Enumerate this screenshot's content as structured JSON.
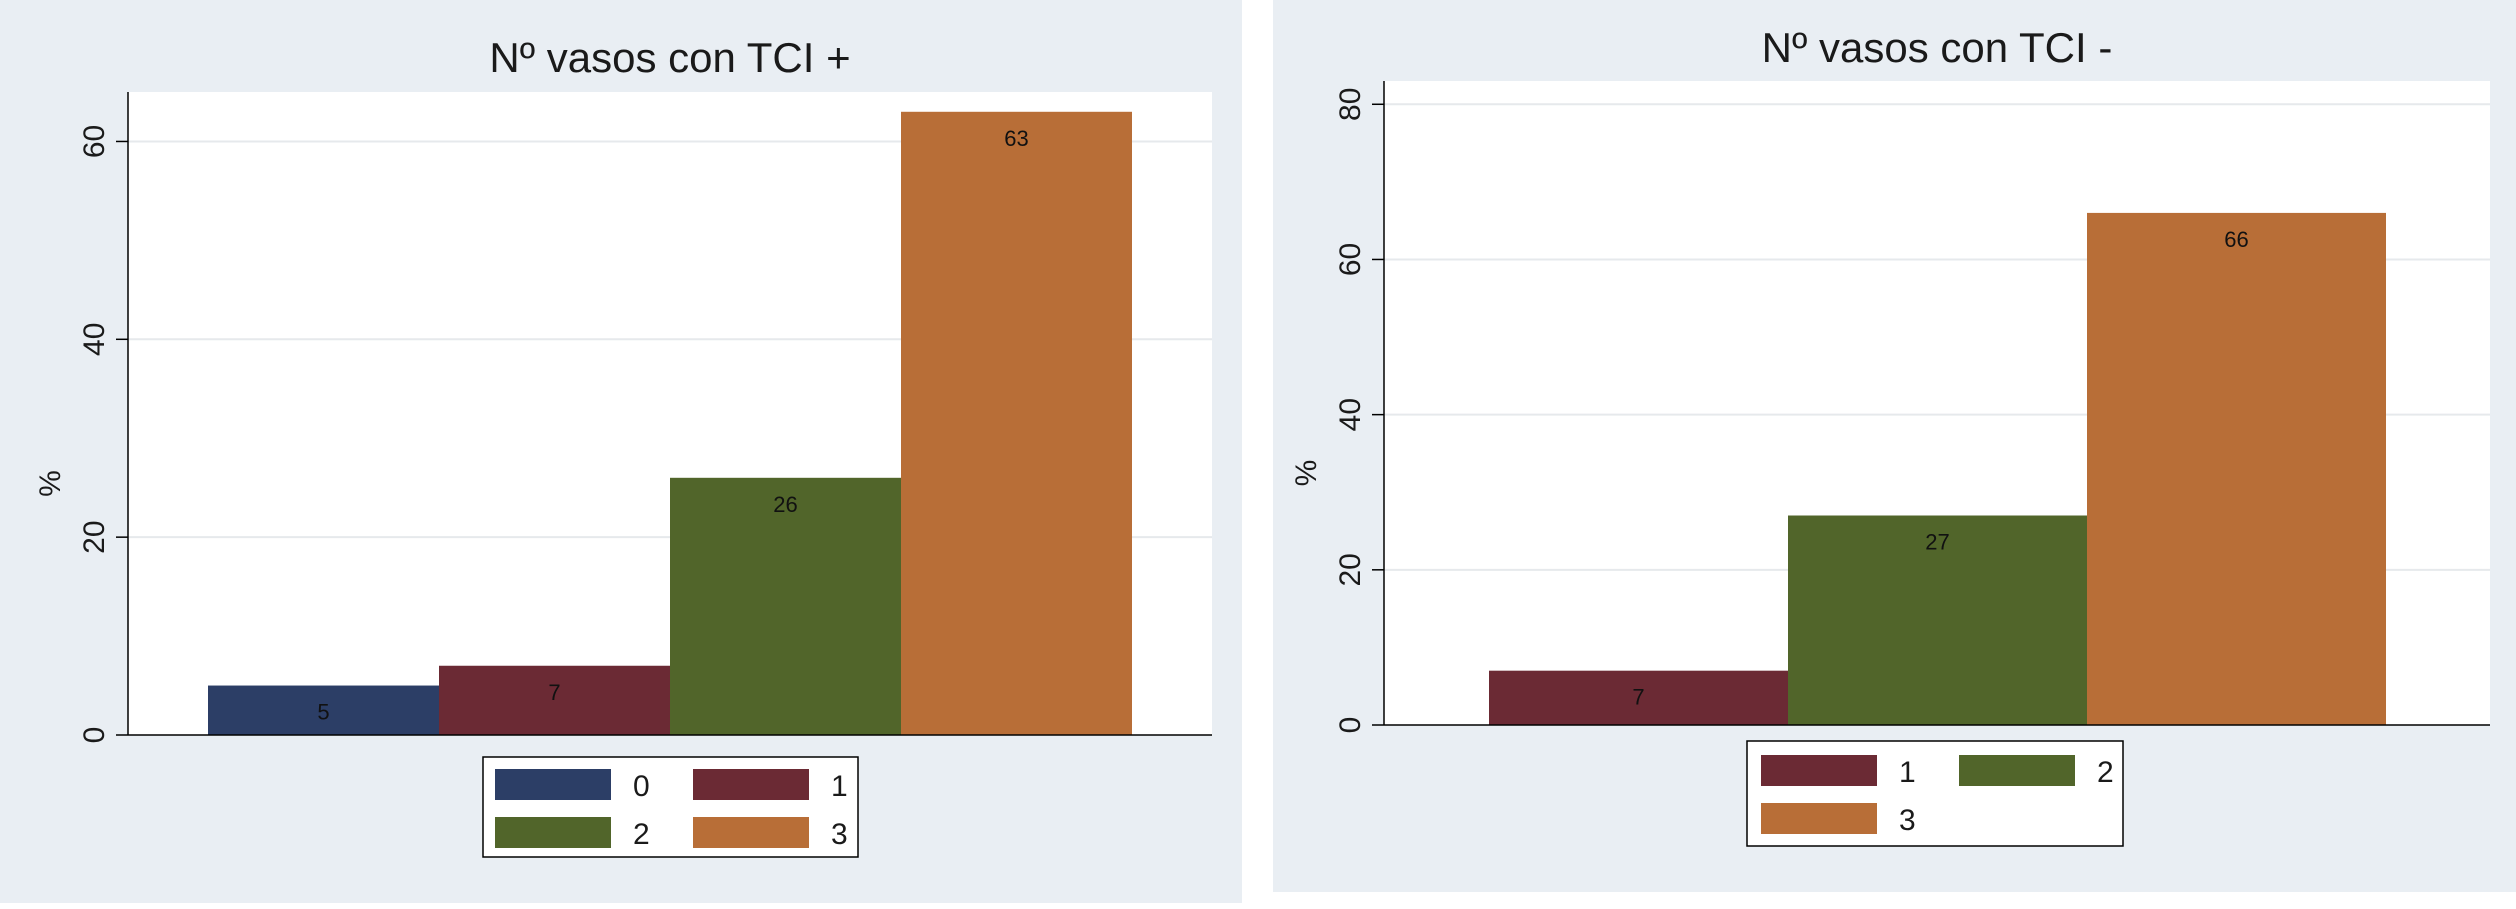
{
  "chart_data": [
    {
      "type": "bar",
      "title": "Nº vasos con TCI +",
      "ylabel": "%",
      "xlabel": "",
      "ylim": [
        0,
        65
      ],
      "yticks": [
        0,
        20,
        40,
        60
      ],
      "grid": true,
      "legend_position": "bottom",
      "series": [
        {
          "name": "0",
          "value": 5,
          "label": "5",
          "color": "#2c3e66"
        },
        {
          "name": "1",
          "value": 7,
          "label": "7",
          "color": "#6b2a34"
        },
        {
          "name": "2",
          "value": 26,
          "label": "26",
          "color": "#51652a"
        },
        {
          "name": "3",
          "value": 63,
          "label": "63",
          "color": "#b86e37"
        }
      ]
    },
    {
      "type": "bar",
      "title": "Nº vasos con TCI -",
      "ylabel": "%",
      "xlabel": "",
      "ylim": [
        0,
        83
      ],
      "yticks": [
        0,
        20,
        40,
        60,
        80
      ],
      "grid": true,
      "legend_position": "bottom",
      "series": [
        {
          "name": "1",
          "value": 7,
          "label": "7",
          "color": "#6b2a34"
        },
        {
          "name": "2",
          "value": 27,
          "label": "27",
          "color": "#51652a"
        },
        {
          "name": "3",
          "value": 66,
          "label": "66",
          "color": "#b86e37"
        }
      ]
    }
  ]
}
